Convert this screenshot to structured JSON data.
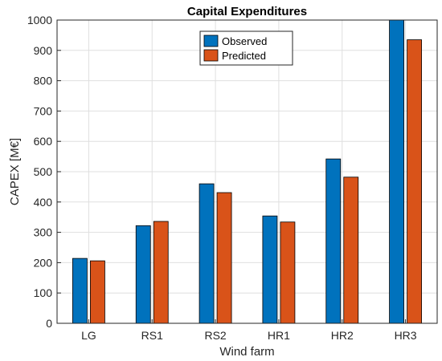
{
  "chart_data": {
    "type": "bar",
    "title": "Capital Expenditures",
    "xlabel": "Wind farm",
    "ylabel": "CAPEX [M€]",
    "categories": [
      "LG",
      "RS1",
      "RS2",
      "HR1",
      "HR2",
      "HR3"
    ],
    "series": [
      {
        "name": "Observed",
        "color": "#0072BD",
        "values": [
          214,
          322,
          460,
          354,
          542,
          1000
        ]
      },
      {
        "name": "Predicted",
        "color": "#D95319",
        "values": [
          206,
          336,
          431,
          334,
          482,
          935
        ]
      }
    ],
    "ylim": [
      0,
      1000
    ],
    "yticks": [
      0,
      100,
      200,
      300,
      400,
      500,
      600,
      700,
      800,
      900,
      1000
    ],
    "grid": true,
    "legend_position": "top-center"
  }
}
